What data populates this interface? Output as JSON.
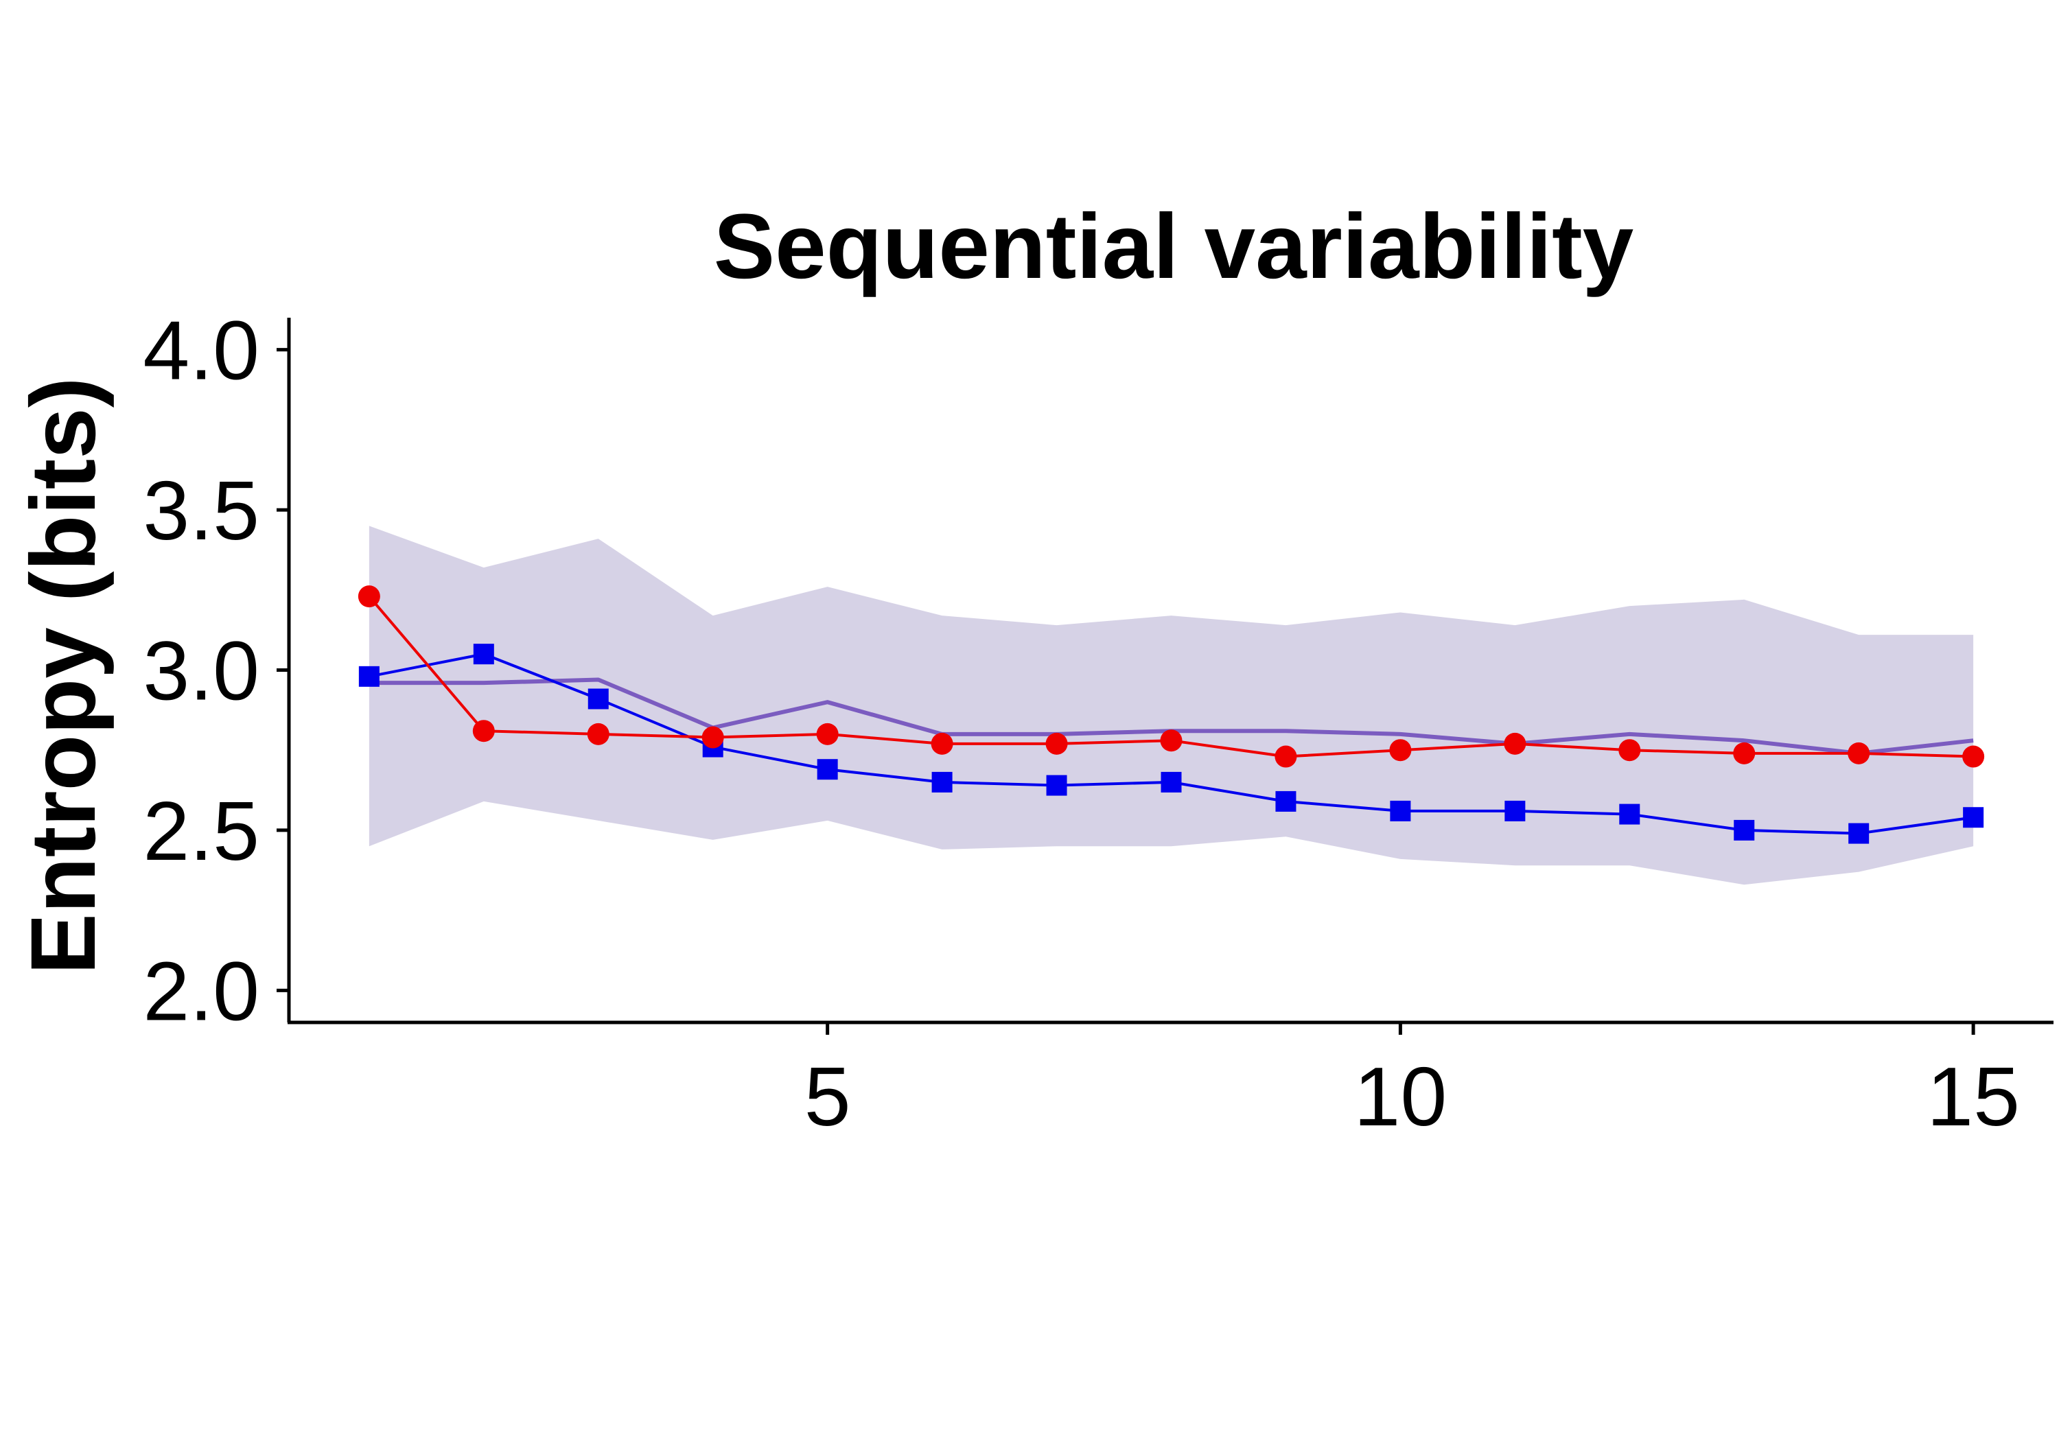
{
  "chart_data": {
    "type": "line",
    "title": "Sequential variability",
    "xlabel": "",
    "ylabel": "Entropy (bits)",
    "xlim": [
      0.3,
      15.7
    ],
    "ylim": [
      1.9,
      4.1
    ],
    "x_ticks": [
      5,
      10,
      15
    ],
    "x_tick_labels": [
      "5",
      "10",
      "15"
    ],
    "y_ticks": [
      2.0,
      2.5,
      3.0,
      3.5,
      4.0
    ],
    "y_tick_labels": [
      "2.0",
      "2.5",
      "3.0",
      "3.5",
      "4.0"
    ],
    "grid": false,
    "legend": "none",
    "x": [
      1,
      2,
      3,
      4,
      5,
      6,
      7,
      8,
      9,
      10,
      11,
      12,
      13,
      14,
      15
    ],
    "band": {
      "color": "#d6d2e6",
      "upper": [
        3.45,
        3.32,
        3.41,
        3.17,
        3.26,
        3.17,
        3.14,
        3.17,
        3.14,
        3.18,
        3.14,
        3.2,
        3.22,
        3.11,
        3.11
      ],
      "lower": [
        2.45,
        2.59,
        2.53,
        2.47,
        2.53,
        2.44,
        2.45,
        2.45,
        2.48,
        2.41,
        2.39,
        2.39,
        2.33,
        2.37,
        2.45
      ]
    },
    "series": [
      {
        "color": "#7b5cc0",
        "marker": "none",
        "values": [
          2.96,
          2.96,
          2.97,
          2.82,
          2.9,
          2.8,
          2.8,
          2.81,
          2.81,
          2.8,
          2.77,
          2.8,
          2.78,
          2.74,
          2.78
        ]
      },
      {
        "color": "#0000ee",
        "marker": "square",
        "values": [
          2.98,
          3.05,
          2.91,
          2.76,
          2.69,
          2.65,
          2.64,
          2.65,
          2.59,
          2.56,
          2.56,
          2.55,
          2.5,
          2.49,
          2.54
        ]
      },
      {
        "color": "#ee0000",
        "marker": "circle",
        "values": [
          3.23,
          2.81,
          2.8,
          2.79,
          2.8,
          2.77,
          2.77,
          2.78,
          2.73,
          2.75,
          2.77,
          2.75,
          2.74,
          2.74,
          2.73
        ]
      }
    ]
  }
}
